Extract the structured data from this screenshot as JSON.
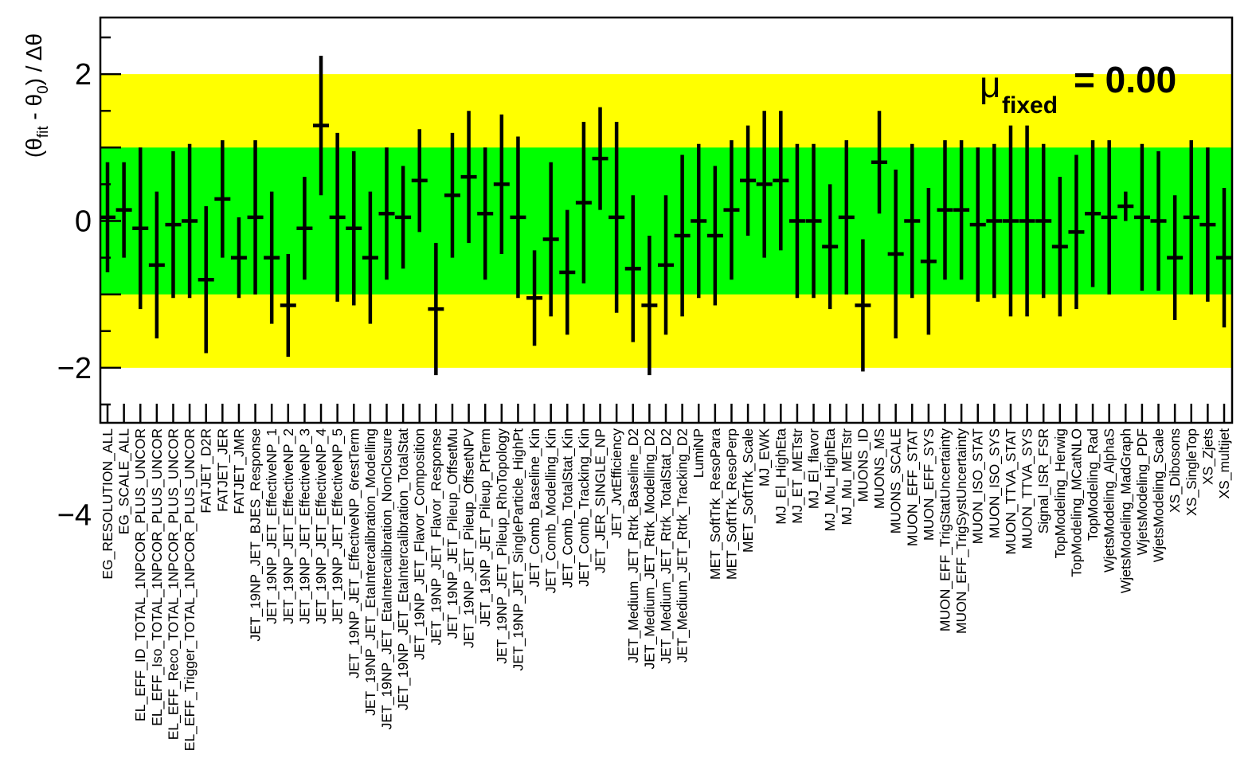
{
  "chart_data": {
    "type": "scatter",
    "ylabel": {
      "open": "(θ",
      "fit_sub": "fit",
      "mid": " - θ",
      "zero_sub": "0",
      "close": ") / Δθ"
    },
    "annotation": {
      "symbol": "μ",
      "subscript": "fixed",
      "text": "= 0.00"
    },
    "ylim": [
      -5.5,
      5.5
    ],
    "yticks": [
      {
        "value": 4,
        "label": "4"
      },
      {
        "value": 2,
        "label": "2"
      },
      {
        "value": 0,
        "label": "0"
      },
      {
        "value": -2,
        "label": "−2"
      },
      {
        "value": -4,
        "label": "−4"
      }
    ],
    "bands": [
      {
        "name": "2sigma",
        "from": -2,
        "to": 2,
        "color": "#ffff00"
      },
      {
        "name": "1sigma",
        "from": -1,
        "to": 1,
        "color": "#00ff00"
      }
    ],
    "marker_color": "#000000",
    "categories": [
      "EG_RESOLUTION_ALL",
      "EG_SCALE_ALL",
      "EL_EFF_ID_TOTAL_1NPCOR_PLUS_UNCOR",
      "EL_EFF_Iso_TOTAL_1NPCOR_PLUS_UNCOR",
      "EL_EFF_Reco_TOTAL_1NPCOR_PLUS_UNCOR",
      "EL_EFF_Trigger_TOTAL_1NPCOR_PLUS_UNCOR",
      "FATJET_D2R",
      "FATJET_JER",
      "FATJET_JMR",
      "JET_19NP_JET_BJES_Response",
      "JET_19NP_JET_EffectiveNP_1",
      "JET_19NP_JET_EffectiveNP_2",
      "JET_19NP_JET_EffectiveNP_3",
      "JET_19NP_JET_EffectiveNP_4",
      "JET_19NP_JET_EffectiveNP_5",
      "JET_19NP_JET_EffectiveNP_6restTerm",
      "JET_19NP_JET_EtaIntercalibration_Modelling",
      "JET_19NP_JET_EtaIntercalibration_NonClosure",
      "JET_19NP_JET_EtaIntercalibration_TotalStat",
      "JET_19NP_JET_Flavor_Composition",
      "JET_19NP_JET_Flavor_Response",
      "JET_19NP_JET_Pileup_OffsetMu",
      "JET_19NP_JET_Pileup_OffsetNPV",
      "JET_19NP_JET_Pileup_PtTerm",
      "JET_19NP_JET_Pileup_RhoTopology",
      "JET_19NP_JET_SingleParticle_HighPt",
      "JET_Comb_Baseline_Kin",
      "JET_Comb_Modelling_Kin",
      "JET_Comb_TotalStat_Kin",
      "JET_Comb_Tracking_Kin",
      "JET_JER_SINGLE_NP",
      "JET_JvtEfficiency",
      "JET_Medium_JET_Rtrk_Baseline_D2",
      "JET_Medium_JET_Rtrk_Modelling_D2",
      "JET_Medium_JET_Rtrk_TotalStat_D2",
      "JET_Medium_JET_Rtrk_Tracking_D2",
      "LumiNP",
      "MET_SoftTrk_ResoPara",
      "MET_SoftTrk_ResoPerp",
      "MET_SoftTrk_Scale",
      "MJ_EWK",
      "MJ_El_HighEta",
      "MJ_ET_METstr",
      "MJ_El_flavor",
      "MJ_Mu_HighEta",
      "MJ_Mu_METstr",
      "MUONS_ID",
      "MUONS_MS",
      "MUONS_SCALE",
      "MUON_EFF_STAT",
      "MUON_EFF_SYS",
      "MUON_EFF_TrigStatUncertainty",
      "MUON_EFF_TrigSystUncertainty",
      "MUON_ISO_STAT",
      "MUON_ISO_SYS",
      "MUON_TTVA_STAT",
      "MUON_TTVA_SYS",
      "Signal_ISR_FSR",
      "TopModeling_Herwig",
      "TopModeling_MCatNLO",
      "TopModeling_Rad",
      "WjetsModeling_AlphaS",
      "WjetsModeling_MadGraph",
      "WjetsModeling_PDF",
      "WjetsModeling_Scale",
      "XS_Dibosons",
      "XS_SingleTop",
      "XS_Zjets",
      "XS_multijet"
    ],
    "series": [
      {
        "values": [
          0.05,
          0.15,
          -0.1,
          -0.6,
          -0.05,
          0.0,
          -0.8,
          0.3,
          -0.5,
          0.05,
          -0.5,
          -1.15,
          -0.1,
          1.3,
          0.05,
          -0.1,
          -0.5,
          0.1,
          0.05,
          0.55,
          -1.2,
          0.35,
          0.6,
          0.1,
          0.5,
          0.05,
          -1.05,
          -0.25,
          -0.7,
          0.25,
          0.85,
          0.05,
          -0.65,
          -1.15,
          -0.6,
          -0.2,
          0.0,
          -0.2,
          0.15,
          0.55,
          0.5,
          0.55,
          0.0,
          0.0,
          -0.35,
          0.05,
          -1.15,
          0.8,
          -0.45,
          0.0,
          -0.55,
          0.15,
          0.15,
          -0.05,
          0.0,
          0.0,
          0.0,
          0.0,
          -0.35,
          -0.15,
          0.1,
          0.05,
          0.2,
          0.05,
          0.0,
          -0.5,
          0.05,
          -0.05,
          -0.5
        ],
        "errors": [
          0.75,
          0.65,
          1.1,
          1.0,
          1.0,
          1.05,
          1.0,
          0.8,
          0.55,
          1.05,
          0.9,
          0.7,
          0.7,
          0.95,
          1.15,
          1.05,
          0.9,
          0.9,
          0.7,
          0.7,
          0.9,
          0.85,
          0.9,
          0.9,
          0.95,
          1.1,
          0.65,
          1.05,
          0.85,
          1.1,
          0.7,
          1.3,
          1.0,
          0.95,
          0.95,
          1.1,
          1.05,
          0.95,
          0.95,
          0.75,
          1.0,
          0.95,
          1.05,
          1.05,
          0.85,
          1.05,
          0.9,
          0.7,
          1.15,
          1.05,
          1.0,
          0.95,
          0.95,
          1.05,
          1.05,
          1.3,
          1.3,
          1.05,
          0.95,
          1.05,
          1.0,
          1.05,
          0.2,
          1.0,
          0.95,
          0.85,
          1.05,
          1.05,
          0.95
        ]
      }
    ]
  }
}
